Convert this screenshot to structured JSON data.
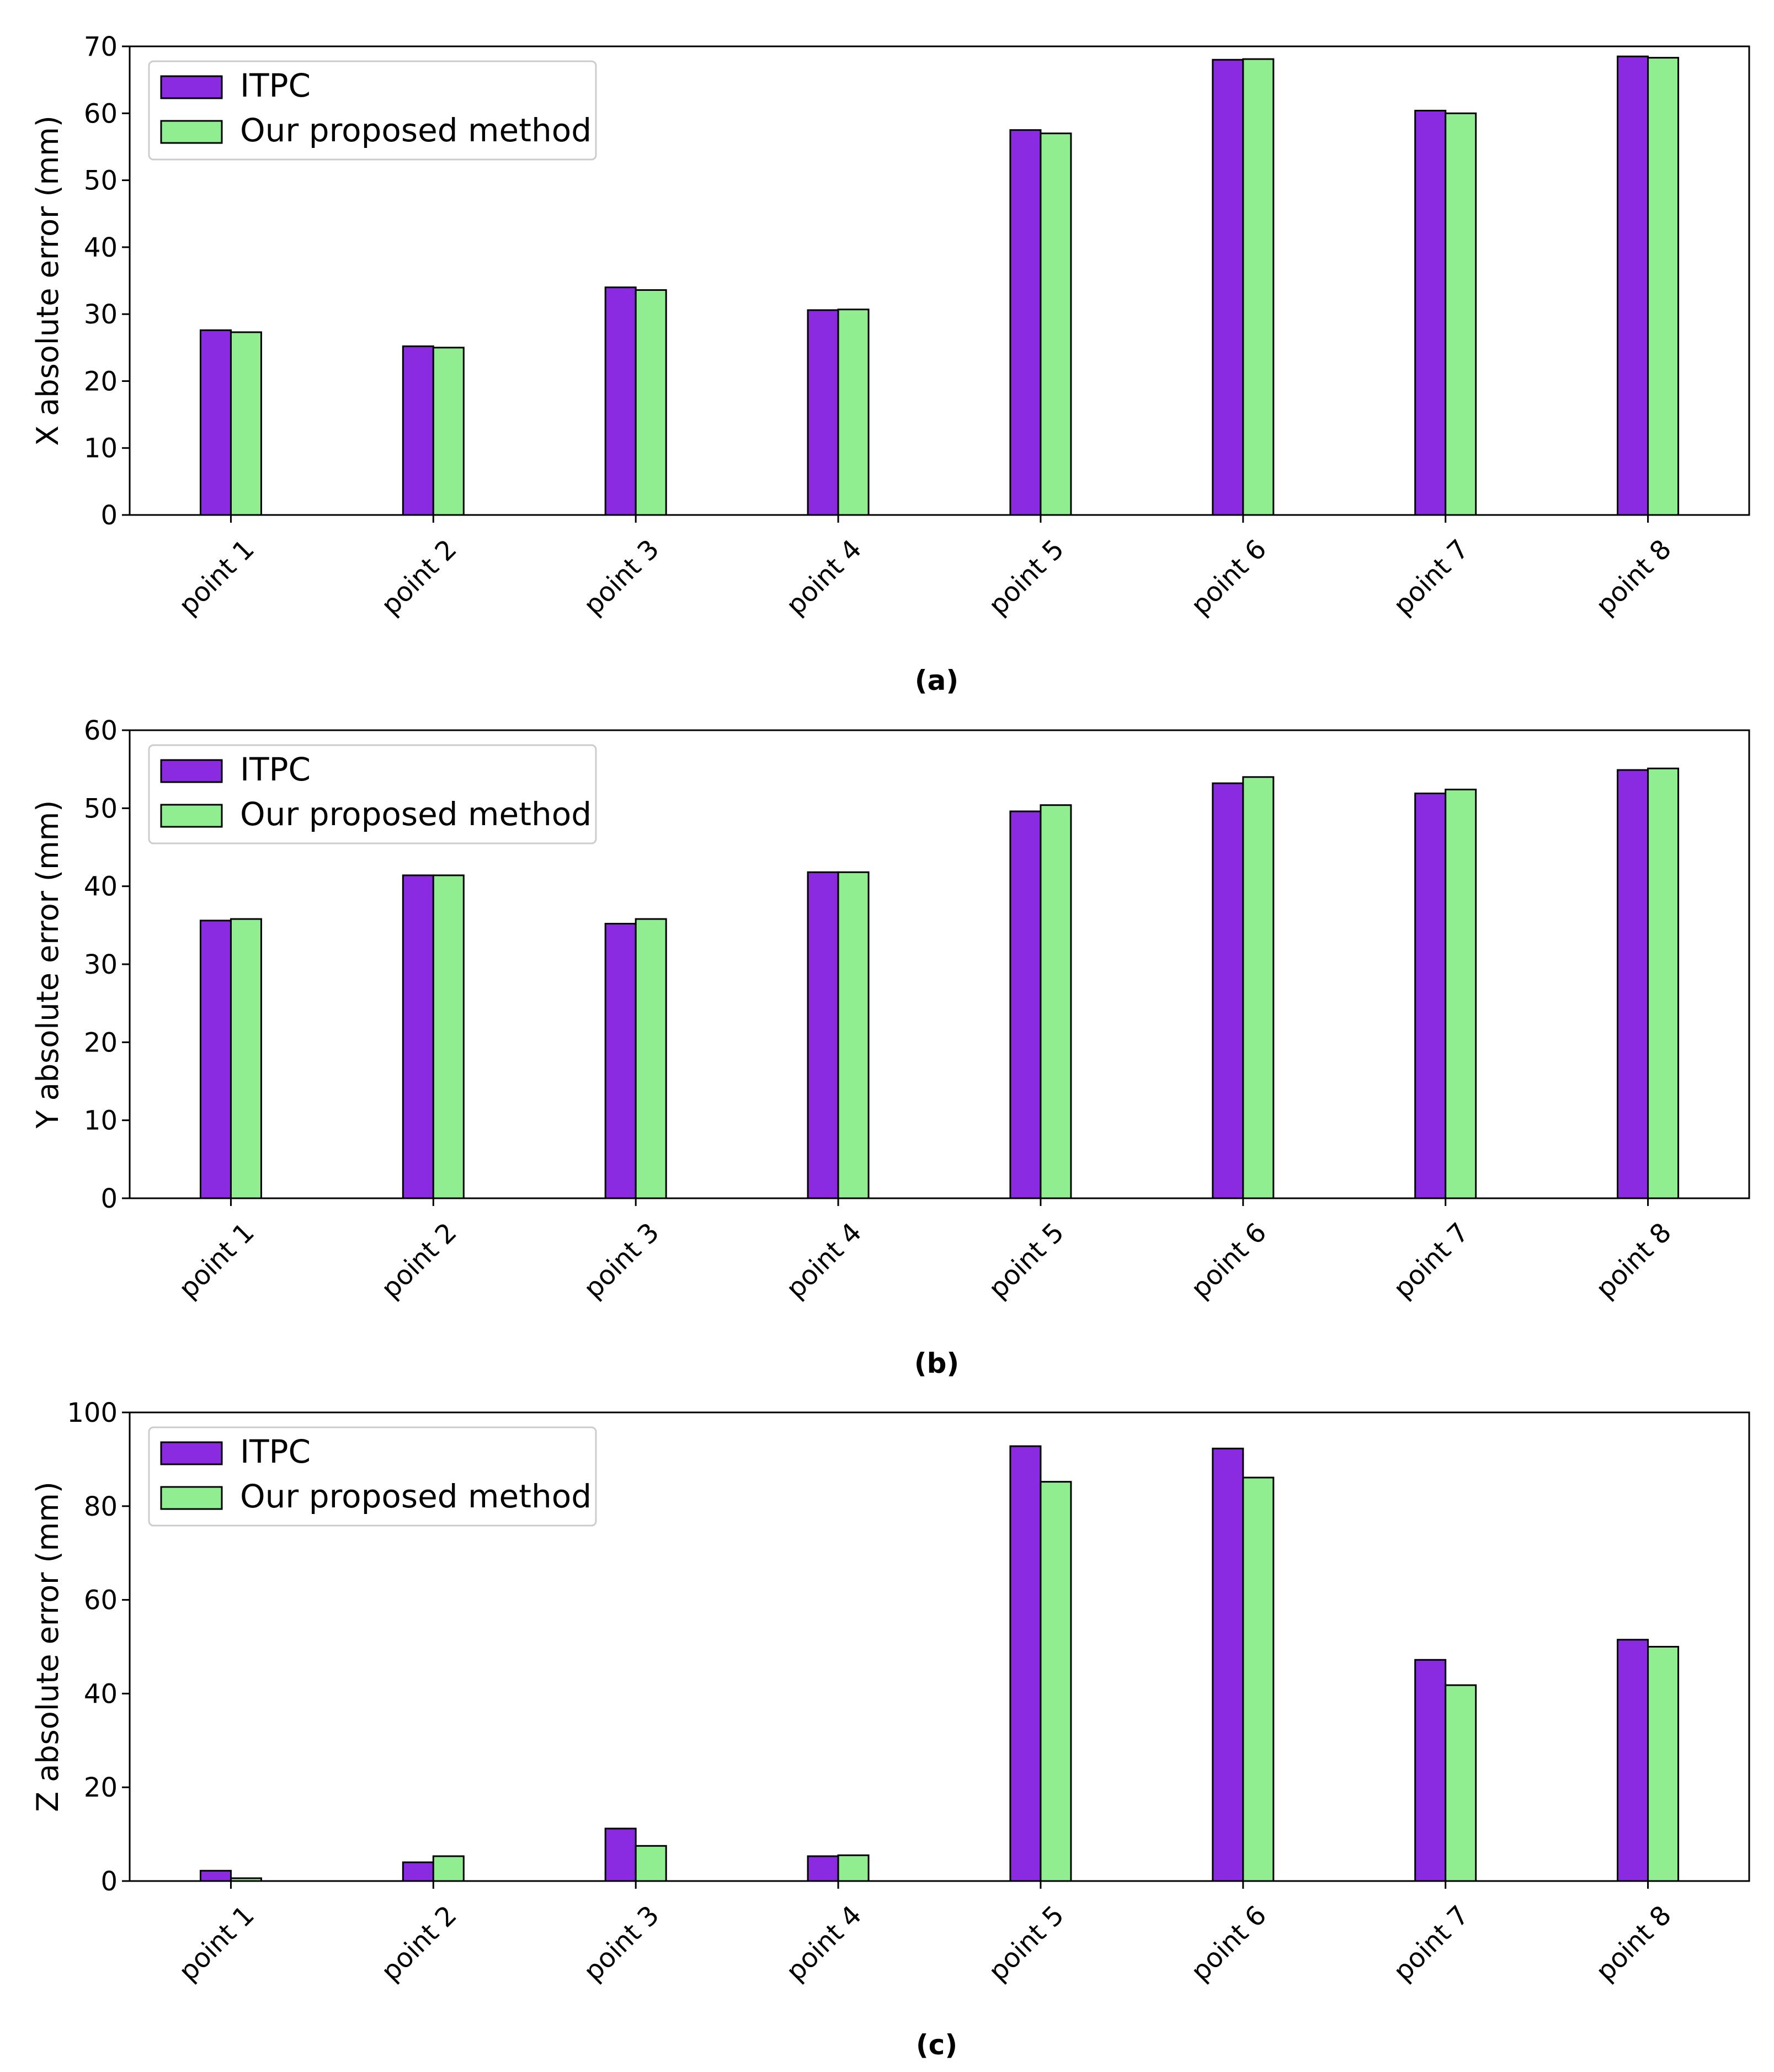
{
  "colors": {
    "itpc": "#8a2be2",
    "proposed": "#90ee90",
    "edge": "#000000"
  },
  "chart_data": [
    {
      "type": "bar",
      "caption": "(a)",
      "categories": [
        "point 1",
        "point 2",
        "point 3",
        "point 4",
        "point 5",
        "point 6",
        "point 7",
        "point 8"
      ],
      "series": [
        {
          "name": "ITPC",
          "values": [
            27.6,
            25.2,
            34.0,
            30.6,
            57.5,
            68.0,
            60.4,
            68.5
          ]
        },
        {
          "name": "Our proposed method",
          "values": [
            27.3,
            25.0,
            33.6,
            30.7,
            57.0,
            68.1,
            60.0,
            68.3
          ]
        }
      ],
      "xlabel": "",
      "ylabel": "X absolute error (mm)",
      "ylim": [
        0,
        70
      ],
      "yticks": [
        0,
        10,
        20,
        30,
        40,
        50,
        60,
        70
      ],
      "legend": "top-left"
    },
    {
      "type": "bar",
      "caption": "(b)",
      "categories": [
        "point 1",
        "point 2",
        "point 3",
        "point 4",
        "point 5",
        "point 6",
        "point 7",
        "point 8"
      ],
      "series": [
        {
          "name": "ITPC",
          "values": [
            35.6,
            41.4,
            35.2,
            41.8,
            49.6,
            53.2,
            51.9,
            54.9
          ]
        },
        {
          "name": "Our proposed method",
          "values": [
            35.8,
            41.4,
            35.8,
            41.8,
            50.4,
            54.0,
            52.4,
            55.1
          ]
        }
      ],
      "xlabel": "",
      "ylabel": "Y absolute error (mm)",
      "ylim": [
        0,
        60
      ],
      "yticks": [
        0,
        10,
        20,
        30,
        40,
        50,
        60
      ],
      "legend": "top-left"
    },
    {
      "type": "bar",
      "caption": "(c)",
      "categories": [
        "point 1",
        "point 2",
        "point 3",
        "point 4",
        "point 5",
        "point 6",
        "point 7",
        "point 8"
      ],
      "series": [
        {
          "name": "ITPC",
          "values": [
            2.2,
            4.0,
            11.2,
            5.3,
            92.8,
            92.3,
            47.2,
            51.5
          ]
        },
        {
          "name": "Our proposed method",
          "values": [
            0.6,
            5.3,
            7.5,
            5.5,
            85.2,
            86.1,
            41.8,
            50.0
          ]
        }
      ],
      "xlabel": "",
      "ylabel": "Z absolute error (mm)",
      "ylim": [
        0,
        100
      ],
      "yticks": [
        0,
        20,
        40,
        60,
        80,
        100
      ],
      "legend": "top-left"
    }
  ]
}
